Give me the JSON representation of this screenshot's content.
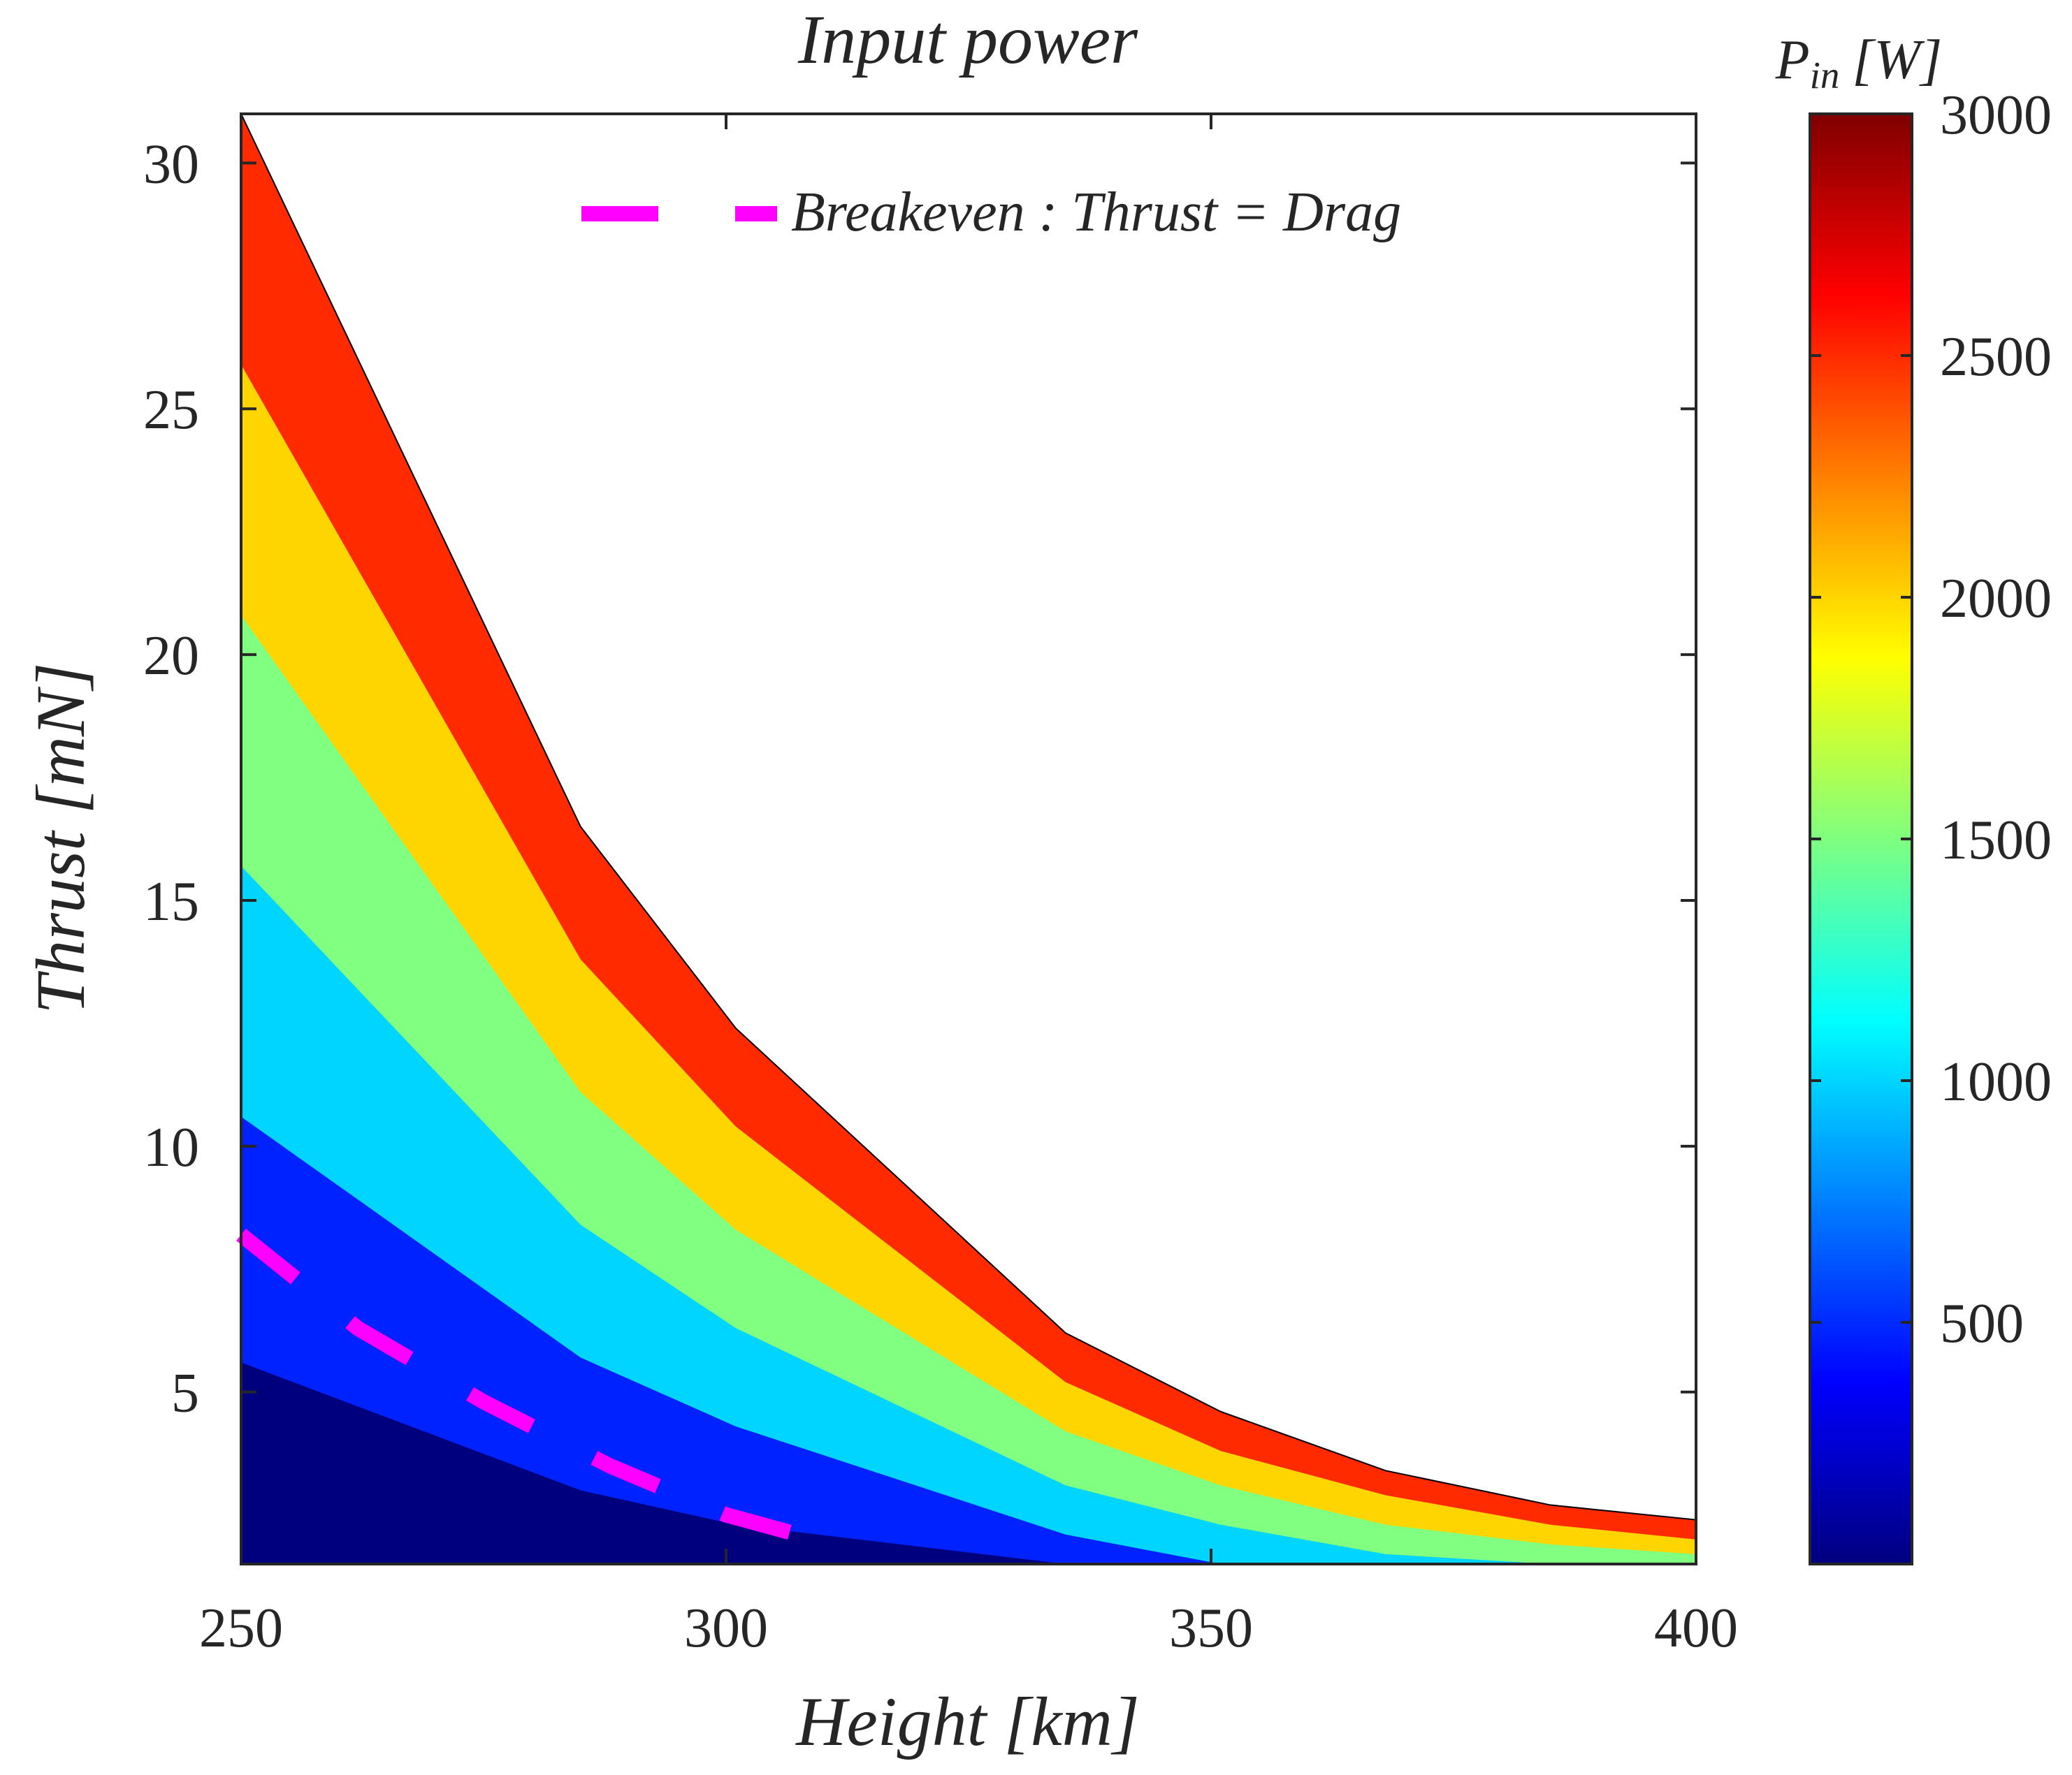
{
  "chart_data": {
    "type": "filled-contour",
    "title": "Input power",
    "xlabel": "Height [km]",
    "ylabel": "Thrust [mN]",
    "xlim": [
      250,
      400
    ],
    "ylim": [
      1.5,
      31
    ],
    "xticks": [
      250,
      300,
      350,
      400
    ],
    "yticks": [
      5,
      10,
      15,
      20,
      25,
      30
    ],
    "x": [
      250,
      285,
      301,
      335,
      351,
      368,
      385,
      400
    ],
    "contour_fills": [
      {
        "level_range": [
          0,
          500
        ],
        "color": "#00007F",
        "upper": [
          5.6,
          3.0,
          2.3,
          1.5,
          1.5,
          1.5,
          1.5,
          1.5
        ]
      },
      {
        "level_range": [
          500,
          1000
        ],
        "color": "#0022FF",
        "upper": [
          10.6,
          5.7,
          4.3,
          2.1,
          1.5,
          1.5,
          1.5,
          1.5
        ]
      },
      {
        "level_range": [
          1000,
          1500
        ],
        "color": "#00D5FF",
        "upper": [
          15.7,
          8.4,
          6.3,
          3.1,
          2.3,
          1.7,
          1.5,
          1.5
        ]
      },
      {
        "level_range": [
          1500,
          2000
        ],
        "color": "#80FF80",
        "upper": [
          20.8,
          11.1,
          8.3,
          4.2,
          3.1,
          2.3,
          1.9,
          1.7
        ]
      },
      {
        "level_range": [
          2000,
          2500
        ],
        "color": "#FFD500",
        "upper": [
          25.9,
          13.8,
          10.4,
          5.2,
          3.8,
          2.9,
          2.3,
          2.0
        ]
      },
      {
        "level_range": [
          2500,
          3000
        ],
        "color": "#FF2A00",
        "upper": [
          31.0,
          16.5,
          12.4,
          6.2,
          4.6,
          3.4,
          2.7,
          2.4
        ]
      }
    ],
    "breakeven": {
      "x": [
        250,
        262,
        275,
        288,
        300,
        313
      ],
      "y": [
        8.2,
        6.3,
        4.8,
        3.5,
        2.5,
        1.8
      ],
      "color": "#FF00FF",
      "style": "dashed"
    },
    "legend": {
      "label": "Breakeven : Thrust = Drag",
      "position": "top-right"
    },
    "colorbar": {
      "label": "P_in [W]",
      "label_main": "P",
      "label_sub": "in",
      "label_unit": "[W]",
      "range": [
        0,
        3000
      ],
      "ticks": [
        500,
        1000,
        1500,
        2000,
        2500,
        3000
      ],
      "colormap": "jet"
    }
  }
}
